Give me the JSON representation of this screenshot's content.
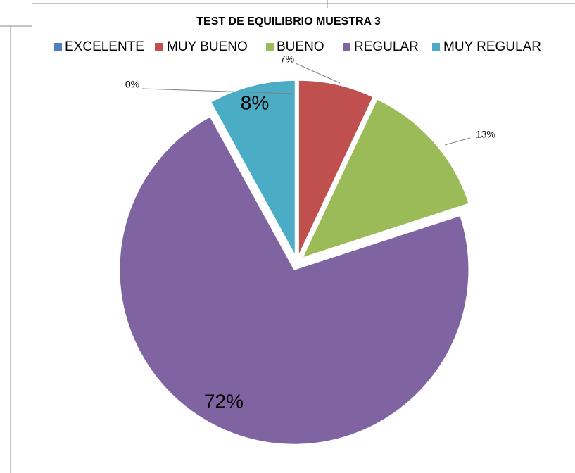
{
  "chart_data": {
    "type": "pie",
    "title": "TEST DE EQUILIBRIO MUESTRA 3",
    "categories": [
      "EXCELENTE",
      "MUY BUENO",
      "BUENO",
      "REGULAR",
      "MUY REGULAR"
    ],
    "values": [
      0,
      7,
      13,
      72,
      8
    ],
    "value_labels": [
      "0%",
      "7%",
      "13%",
      "72%",
      "8%"
    ],
    "colors": [
      "#4f81bd",
      "#c0504d",
      "#9bbb59",
      "#8064a2",
      "#4bacc6"
    ],
    "legend": "top"
  }
}
